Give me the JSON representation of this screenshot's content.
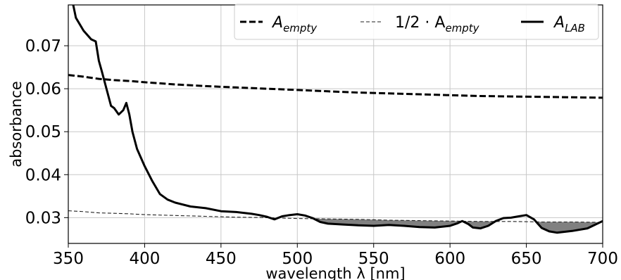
{
  "chart_data": {
    "type": "line",
    "xlabel": "wavelength λ [nm]",
    "ylabel": "absorbance",
    "xlim": [
      350,
      700
    ],
    "ylim": [
      0.024,
      0.0795
    ],
    "x_ticks": [
      "350",
      "400",
      "450",
      "500",
      "550",
      "600",
      "650",
      "700"
    ],
    "y_ticks": [
      "0.03",
      "0.04",
      "0.05",
      "0.06",
      "0.07"
    ],
    "grid": true,
    "legend_position": "top-right",
    "shaded_region": "between 1/2·A_empty and A_LAB where A_LAB < 1/2·A_empty",
    "colors": {
      "lines": "#000000",
      "grid": "#c8c8c8",
      "fill": "#808080"
    },
    "series": [
      {
        "name": "A_empty",
        "legend_main": "A",
        "legend_sub": "empty",
        "style": "dashed-thick",
        "x": [
          350,
          360,
          370,
          380,
          390,
          400,
          420,
          440,
          460,
          480,
          500,
          520,
          540,
          560,
          580,
          600,
          620,
          640,
          660,
          680,
          700
        ],
        "y": [
          0.0632,
          0.0628,
          0.0623,
          0.062,
          0.0618,
          0.0615,
          0.061,
          0.0606,
          0.0603,
          0.06,
          0.0597,
          0.0594,
          0.0591,
          0.0589,
          0.0587,
          0.0585,
          0.0583,
          0.0582,
          0.0581,
          0.058,
          0.0579
        ]
      },
      {
        "name": "1/2·A_empty",
        "legend_main": "1/2 · A",
        "legend_sub": "empty",
        "style": "dashed-thin",
        "x": [
          350,
          360,
          370,
          380,
          390,
          400,
          420,
          440,
          460,
          480,
          500,
          520,
          540,
          560,
          580,
          600,
          620,
          640,
          660,
          680,
          700
        ],
        "y": [
          0.0316,
          0.0314,
          0.0311,
          0.031,
          0.0309,
          0.0307,
          0.0305,
          0.0303,
          0.0301,
          0.03,
          0.0298,
          0.0297,
          0.0296,
          0.0294,
          0.0293,
          0.0292,
          0.0291,
          0.0291,
          0.029,
          0.029,
          0.0289
        ]
      },
      {
        "name": "A_LAB",
        "legend_main": "A",
        "legend_sub": "LAB",
        "style": "solid",
        "x": [
          350,
          355,
          360,
          365,
          368,
          370,
          372,
          375,
          378,
          380,
          383,
          386,
          388,
          390,
          392,
          395,
          400,
          405,
          410,
          415,
          420,
          430,
          440,
          450,
          460,
          470,
          475,
          480,
          485,
          490,
          495,
          500,
          505,
          510,
          515,
          520,
          530,
          540,
          550,
          560,
          570,
          580,
          590,
          600,
          605,
          608,
          612,
          615,
          620,
          625,
          630,
          635,
          640,
          645,
          650,
          655,
          660,
          665,
          670,
          680,
          690,
          700
        ],
        "y": [
          0.085,
          0.0765,
          0.0735,
          0.0715,
          0.071,
          0.0665,
          0.064,
          0.06,
          0.056,
          0.0555,
          0.054,
          0.055,
          0.0567,
          0.054,
          0.05,
          0.046,
          0.042,
          0.0385,
          0.0355,
          0.0342,
          0.0335,
          0.0326,
          0.0322,
          0.0315,
          0.0313,
          0.0309,
          0.0306,
          0.0302,
          0.0296,
          0.0303,
          0.0306,
          0.0308,
          0.0305,
          0.0299,
          0.029,
          0.0286,
          0.0284,
          0.0282,
          0.0281,
          0.0283,
          0.0281,
          0.0278,
          0.0277,
          0.0281,
          0.0287,
          0.0292,
          0.0285,
          0.0277,
          0.0275,
          0.0281,
          0.0292,
          0.0299,
          0.03,
          0.0303,
          0.0306,
          0.0296,
          0.0276,
          0.0268,
          0.0265,
          0.0269,
          0.0275,
          0.0292
        ]
      }
    ]
  }
}
